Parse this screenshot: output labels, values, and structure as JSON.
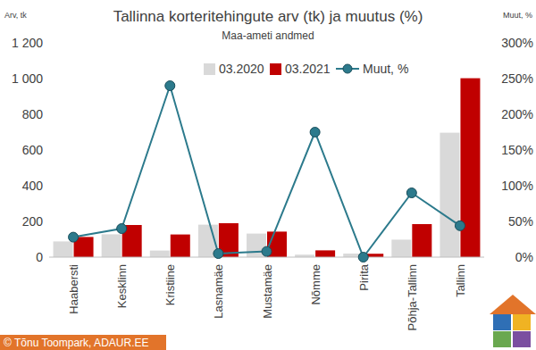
{
  "chart_data": {
    "type": "bar",
    "title": "Tallinna korteritehingute arv (tk) ja muutus (%)",
    "subtitle": "Maa-ameti andmed",
    "y_label": "Arv, tk",
    "y2_label": "Muut, %",
    "credit": "© Tõnu Toompark, ADAUR.EE",
    "categories": [
      "Haabersti",
      "Kesklinn",
      "Kristiine",
      "Lasnamäe",
      "Mustamäe",
      "Nõmme",
      "Pirita",
      "Põhja-Tallinn",
      "Tallinn"
    ],
    "series": [
      {
        "name": "03.2020",
        "type": "bar",
        "color": "#d9d9d9",
        "values": [
          88,
          128,
          37,
          182,
          132,
          14,
          20,
          98,
          697
        ]
      },
      {
        "name": "03.2021",
        "type": "bar",
        "color": "#c00000",
        "values": [
          113,
          180,
          127,
          190,
          143,
          38,
          19,
          185,
          1002
        ]
      },
      {
        "name": "Muut, %",
        "type": "line",
        "color": "#2c7a8c",
        "marker": "circle",
        "axis": "y2",
        "values": [
          28,
          40,
          240,
          5,
          8,
          175,
          0,
          90,
          44
        ]
      }
    ],
    "ylim": [
      0,
      1200
    ],
    "yticks": [
      0,
      200,
      400,
      600,
      800,
      {
        "value": 1000,
        "label": "1 000"
      },
      {
        "value": 1200,
        "label": "1 200"
      }
    ],
    "y2lim": [
      0,
      300
    ],
    "y2ticks": [
      {
        "value": 0,
        "label": "0%"
      },
      {
        "value": 50,
        "label": "50%"
      },
      {
        "value": 100,
        "label": "100%"
      },
      {
        "value": 150,
        "label": "150%"
      },
      {
        "value": 200,
        "label": "200%"
      },
      {
        "value": 250,
        "label": "250%"
      },
      {
        "value": 300,
        "label": "300%"
      }
    ],
    "grid": false,
    "legend": "top"
  }
}
